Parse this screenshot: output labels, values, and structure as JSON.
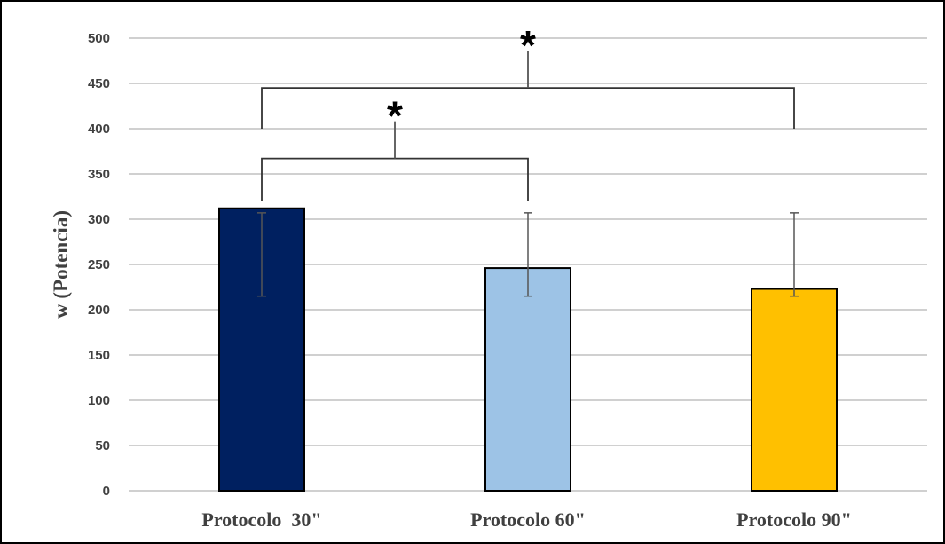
{
  "chart_data": {
    "type": "bar",
    "title": "",
    "xlabel": "",
    "ylabel": "w (Potencia)",
    "ylim": [
      0,
      500
    ],
    "yticks": [
      0,
      50,
      100,
      150,
      200,
      250,
      300,
      350,
      400,
      450,
      500
    ],
    "grid": true,
    "legend": "none",
    "categories": [
      "Protocolo  30\"",
      "Protocolo 60\"",
      "Protocolo 90\""
    ],
    "values": [
      312,
      246,
      223
    ],
    "error_bars": [
      {
        "low": 215,
        "high": 307
      },
      {
        "low": 215,
        "high": 307
      },
      {
        "low": 215,
        "high": 307
      }
    ],
    "colors": [
      "#002060",
      "#9DC3E6",
      "#FFC000"
    ],
    "significance": [
      {
        "from": 0,
        "to": 1,
        "label": "*",
        "level": 367
      },
      {
        "from": 0,
        "to": 2,
        "label": "*",
        "level": 445
      }
    ]
  }
}
